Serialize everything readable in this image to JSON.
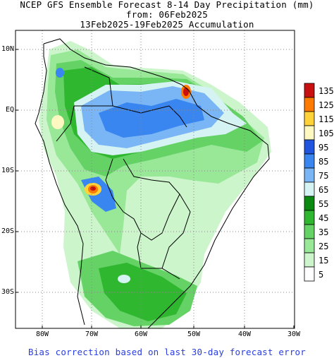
{
  "header": {
    "line1": "NCEP GFS Ensemble Forecast 8-14 Day Precipitation (mm)",
    "line2": "from: 06Feb2025",
    "line3": "13Feb2025-19Feb2025 Accumulation"
  },
  "axes": {
    "lat_labels": [
      "10N",
      "EQ",
      "10S",
      "20S",
      "30S"
    ],
    "lon_labels": [
      "80W",
      "70W",
      "60W",
      "50W",
      "40W",
      "30W"
    ]
  },
  "legend": {
    "values": [
      "135",
      "125",
      "115",
      "105",
      "95",
      "85",
      "75",
      "65",
      "55",
      "45",
      "35",
      "25",
      "15",
      "5"
    ],
    "colors": [
      "#c81010",
      "#ff7a00",
      "#ffd23a",
      "#fff8c0",
      "#2255dd",
      "#3a86f0",
      "#7ab6f5",
      "#d6f3f3",
      "#0a8a10",
      "#2fb72f",
      "#64d264",
      "#98e898",
      "#ccf5cc",
      "#ffffff"
    ]
  },
  "footer": "Bias correction based on last 30-day forecast error",
  "colors": {
    "footer_text": "#2a3de0",
    "land_border": "#000000",
    "grid": "#888888"
  }
}
